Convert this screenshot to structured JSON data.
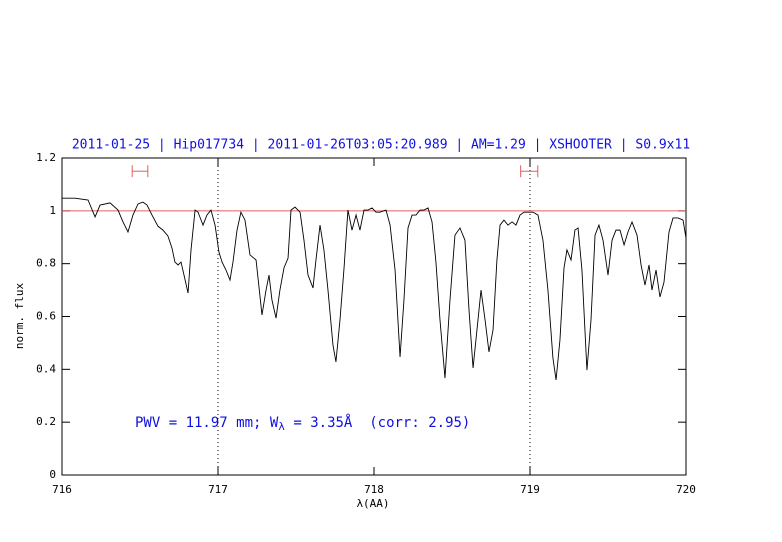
{
  "chart_data": {
    "type": "line",
    "title": "2011-01-25 | Hip017734 | 2011-01-26T03:05:20.989 | AM=1.29 | XSHOOTER | S0.9x11",
    "xlabel": "λ(AA)",
    "ylabel": "norm. flux",
    "annotation": [
      "PWV = 11.97 mm; W",
      "λ",
      " = 3.35Å  (corr: 2.95)"
    ],
    "xlim": [
      716,
      720
    ],
    "ylim": [
      0,
      1.2
    ],
    "xticks": [
      716,
      717,
      718,
      719,
      720
    ],
    "yticks": [
      0,
      0.2,
      0.4,
      0.6,
      0.8,
      1,
      1.2
    ],
    "color": "#000000",
    "reference_line": {
      "value": 1,
      "color": "#e06060"
    },
    "vlines": [
      717,
      719
    ],
    "intervals": [
      {
        "x": [
          716.45,
          716.55
        ],
        "y": 1.15
      },
      {
        "x": [
          718.94,
          719.05
        ],
        "y": 1.15
      }
    ],
    "x": [
      716,
      716.083,
      716.167,
      716.212,
      716.244,
      716.308,
      716.359,
      716.391,
      716.423,
      716.455,
      716.487,
      716.519,
      716.545,
      716.577,
      716.615,
      716.647,
      716.679,
      716.705,
      716.724,
      716.744,
      716.763,
      716.782,
      716.808,
      716.827,
      716.853,
      716.872,
      716.904,
      716.929,
      716.955,
      716.981,
      717.006,
      717.026,
      717.051,
      717.077,
      717.096,
      717.122,
      717.147,
      717.173,
      717.205,
      717.244,
      717.282,
      717.308,
      717.327,
      717.346,
      717.372,
      717.397,
      717.423,
      717.449,
      717.468,
      717.494,
      717.526,
      717.551,
      717.577,
      717.609,
      717.628,
      717.654,
      717.679,
      717.705,
      717.737,
      717.756,
      717.782,
      717.808,
      717.833,
      717.859,
      717.885,
      717.91,
      717.936,
      717.962,
      717.987,
      718.013,
      718.038,
      718.077,
      718.103,
      718.135,
      718.167,
      718.192,
      718.218,
      718.244,
      718.269,
      718.295,
      718.321,
      718.346,
      718.372,
      718.397,
      718.423,
      718.455,
      718.487,
      718.519,
      718.551,
      718.583,
      718.609,
      718.635,
      718.66,
      718.686,
      718.712,
      718.737,
      718.763,
      718.788,
      718.808,
      718.833,
      718.859,
      718.885,
      718.91,
      718.936,
      718.962,
      718.987,
      719.019,
      719.051,
      719.083,
      719.115,
      719.147,
      719.167,
      719.192,
      719.218,
      719.237,
      719.263,
      719.288,
      719.308,
      719.333,
      719.365,
      719.391,
      719.417,
      719.442,
      719.468,
      719.5,
      719.526,
      719.551,
      719.577,
      719.603,
      719.628,
      719.654,
      719.686,
      719.712,
      719.737,
      719.763,
      719.782,
      719.808,
      719.833,
      719.859,
      719.891,
      719.917,
      719.949,
      719.981,
      720
    ],
    "values": [
      1.048,
      1.048,
      1.041,
      0.977,
      1.022,
      1.03,
      1.003,
      0.958,
      0.92,
      0.984,
      1.026,
      1.033,
      1.022,
      0.984,
      0.942,
      0.927,
      0.905,
      0.859,
      0.806,
      0.795,
      0.806,
      0.757,
      0.689,
      0.852,
      1.003,
      0.995,
      0.946,
      0.984,
      1.003,
      0.946,
      0.844,
      0.806,
      0.776,
      0.738,
      0.806,
      0.927,
      0.995,
      0.965,
      0.833,
      0.814,
      0.606,
      0.7,
      0.757,
      0.662,
      0.594,
      0.7,
      0.784,
      0.821,
      1.003,
      1.014,
      0.995,
      0.889,
      0.757,
      0.708,
      0.814,
      0.946,
      0.852,
      0.7,
      0.492,
      0.428,
      0.587,
      0.784,
      1.003,
      0.927,
      0.984,
      0.927,
      1.003,
      1.003,
      1.011,
      0.995,
      0.995,
      1.003,
      0.946,
      0.776,
      0.447,
      0.662,
      0.935,
      0.984,
      0.984,
      1.003,
      1.003,
      1.011,
      0.958,
      0.806,
      0.587,
      0.367,
      0.662,
      0.908,
      0.935,
      0.889,
      0.625,
      0.405,
      0.549,
      0.7,
      0.587,
      0.466,
      0.549,
      0.814,
      0.946,
      0.965,
      0.946,
      0.958,
      0.946,
      0.984,
      0.995,
      0.995,
      0.995,
      0.984,
      0.889,
      0.7,
      0.443,
      0.36,
      0.511,
      0.784,
      0.852,
      0.814,
      0.927,
      0.935,
      0.776,
      0.397,
      0.587,
      0.908,
      0.946,
      0.889,
      0.757,
      0.889,
      0.927,
      0.927,
      0.871,
      0.92,
      0.958,
      0.908,
      0.795,
      0.719,
      0.795,
      0.7,
      0.776,
      0.674,
      0.73,
      0.92,
      0.973,
      0.973,
      0.965,
      0.897
    ]
  }
}
